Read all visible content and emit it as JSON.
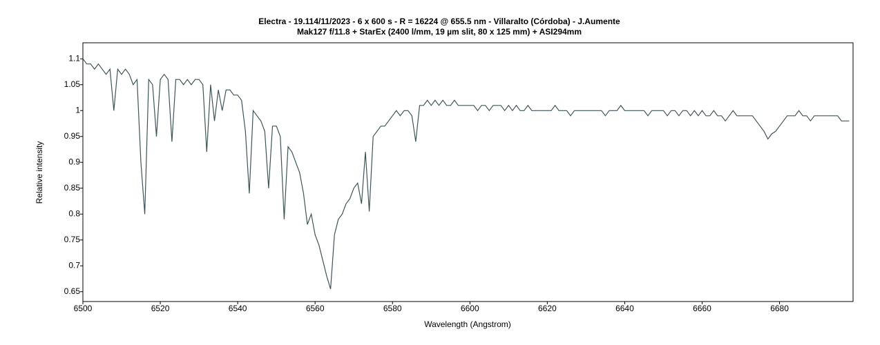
{
  "chart_data": {
    "type": "line",
    "title": "Electra - 19.114/11/2023 - 6 x 600 s - R = 16224 @ 655.5 nm - Villaralto (Córdoba) - J.Aumente",
    "subtitle": "Mak127 f/11.8 + StarEx (2400 l/mm, 19 µm slit, 80 x 125 mm) + ASI294mm",
    "x_label": "Wavelength (Angstrom)",
    "y_label": "Relative intensity",
    "xlim": [
      6500,
      6699
    ],
    "ylim": [
      0.631,
      1.131
    ],
    "xticks": [
      6500,
      6520,
      6540,
      6560,
      6580,
      6600,
      6620,
      6640,
      6660,
      6680
    ],
    "yticks": [
      0.65,
      0.7,
      0.75,
      0.8,
      0.85,
      0.9,
      0.95,
      1,
      1.05,
      1.1
    ],
    "color": "#3d5457",
    "x": [
      6500,
      6501,
      6502,
      6503,
      6504,
      6505,
      6506,
      6507,
      6508,
      6509,
      6510,
      6511,
      6512,
      6513,
      6514,
      6515,
      6516,
      6517,
      6518,
      6519,
      6520,
      6521,
      6522,
      6523,
      6524,
      6525,
      6526,
      6527,
      6528,
      6529,
      6530,
      6531,
      6532,
      6533,
      6534,
      6535,
      6536,
      6537,
      6538,
      6539,
      6540,
      6541,
      6542,
      6543,
      6544,
      6545,
      6546,
      6547,
      6548,
      6549,
      6550,
      6551,
      6552,
      6553,
      6554,
      6555,
      6556,
      6557,
      6558,
      6559,
      6560,
      6561,
      6562,
      6563,
      6564,
      6565,
      6566,
      6567,
      6568,
      6569,
      6570,
      6571,
      6572,
      6573,
      6574,
      6575,
      6576,
      6577,
      6578,
      6579,
      6580,
      6581,
      6582,
      6583,
      6584,
      6585,
      6586,
      6587,
      6588,
      6589,
      6590,
      6591,
      6592,
      6593,
      6594,
      6595,
      6596,
      6597,
      6598,
      6599,
      6600,
      6601,
      6602,
      6603,
      6604,
      6605,
      6606,
      6607,
      6608,
      6609,
      6610,
      6611,
      6612,
      6613,
      6614,
      6615,
      6616,
      6617,
      6618,
      6619,
      6620,
      6621,
      6622,
      6623,
      6624,
      6625,
      6626,
      6627,
      6628,
      6629,
      6630,
      6631,
      6632,
      6633,
      6634,
      6635,
      6636,
      6637,
      6638,
      6639,
      6640,
      6641,
      6642,
      6643,
      6644,
      6645,
      6646,
      6647,
      6648,
      6649,
      6650,
      6651,
      6652,
      6653,
      6654,
      6655,
      6656,
      6657,
      6658,
      6659,
      6660,
      6661,
      6662,
      6663,
      6664,
      6665,
      6666,
      6667,
      6668,
      6669,
      6670,
      6671,
      6672,
      6673,
      6674,
      6675,
      6676,
      6677,
      6678,
      6679,
      6680,
      6681,
      6682,
      6683,
      6684,
      6685,
      6686,
      6687,
      6688,
      6689,
      6690,
      6691,
      6692,
      6693,
      6694,
      6695,
      6696,
      6697,
      6698
    ],
    "values": [
      1.1,
      1.09,
      1.09,
      1.08,
      1.09,
      1.08,
      1.07,
      1.08,
      1.0,
      1.08,
      1.07,
      1.08,
      1.07,
      1.05,
      1.06,
      0.9,
      0.8,
      1.06,
      1.05,
      0.95,
      1.06,
      1.07,
      1.06,
      0.94,
      1.06,
      1.06,
      1.05,
      1.06,
      1.05,
      1.06,
      1.06,
      1.05,
      0.92,
      1.05,
      0.98,
      1.04,
      1.0,
      1.04,
      1.04,
      1.03,
      1.03,
      1.02,
      0.96,
      0.84,
      1.0,
      0.99,
      0.98,
      0.96,
      0.85,
      0.97,
      0.97,
      0.95,
      0.79,
      0.93,
      0.92,
      0.9,
      0.88,
      0.84,
      0.78,
      0.8,
      0.76,
      0.74,
      0.71,
      0.68,
      0.655,
      0.76,
      0.79,
      0.8,
      0.82,
      0.83,
      0.85,
      0.86,
      0.82,
      0.92,
      0.805,
      0.95,
      0.96,
      0.97,
      0.97,
      0.98,
      0.99,
      1.0,
      0.99,
      1.0,
      1.0,
      0.99,
      0.94,
      1.01,
      1.01,
      1.02,
      1.01,
      1.02,
      1.01,
      1.02,
      1.01,
      1.01,
      1.02,
      1.01,
      1.01,
      1.01,
      1.01,
      1.01,
      1.0,
      1.01,
      1.01,
      1.0,
      1.01,
      1.01,
      1.01,
      1.0,
      1.01,
      1.0,
      1.01,
      1.0,
      1.0,
      1.01,
      1.0,
      1.0,
      1.0,
      1.0,
      1.0,
      1.0,
      1.01,
      1.0,
      1.0,
      1.0,
      0.99,
      1.0,
      1.0,
      1.0,
      1.0,
      1.0,
      1.0,
      1.0,
      1.0,
      0.99,
      1.0,
      1.0,
      1.0,
      1.01,
      1.0,
      1.0,
      1.0,
      1.0,
      1.0,
      1.0,
      0.99,
      1.0,
      1.0,
      1.0,
      1.0,
      0.99,
      1.0,
      1.0,
      0.99,
      1.0,
      1.0,
      0.99,
      1.0,
      0.99,
      1.0,
      0.99,
      0.99,
      1.0,
      0.99,
      0.99,
      0.98,
      0.99,
      1.0,
      0.99,
      0.99,
      0.99,
      0.99,
      0.99,
      0.98,
      0.97,
      0.96,
      0.945,
      0.955,
      0.96,
      0.97,
      0.98,
      0.99,
      0.99,
      0.99,
      1.0,
      0.99,
      0.99,
      0.98,
      0.99,
      0.99,
      0.99,
      0.99,
      0.99,
      0.99,
      0.99,
      0.98,
      0.98,
      0.98
    ]
  }
}
